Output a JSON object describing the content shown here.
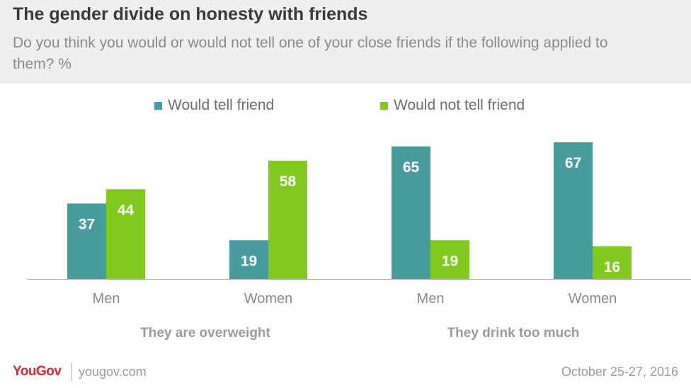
{
  "header": {
    "title": "The gender divide on honesty with friends",
    "subtitle": "Do you think you would or would not tell one of your close friends if the following applied to them? %"
  },
  "colors": {
    "would_tell": "#479c9d",
    "would_not_tell": "#82c91e"
  },
  "chart_data": {
    "type": "bar",
    "legend_position": "top-center",
    "grid": false,
    "ylim": [
      0,
      70
    ],
    "groups": [
      {
        "label": "They are overweight",
        "categories": [
          {
            "label": "Men",
            "values": [
              37,
              44
            ]
          },
          {
            "label": "Women",
            "values": [
              19,
              58
            ]
          }
        ]
      },
      {
        "label": "They drink too much",
        "categories": [
          {
            "label": "Men",
            "values": [
              65,
              19
            ]
          },
          {
            "label": "Women",
            "values": [
              67,
              16
            ]
          }
        ]
      }
    ],
    "series": [
      {
        "name": "Would tell friend",
        "values": [
          37,
          19,
          65,
          67
        ]
      },
      {
        "name": "Would not tell friend",
        "values": [
          44,
          58,
          19,
          16
        ]
      }
    ]
  },
  "footer": {
    "logo": "YouGov",
    "site": "yougov.com",
    "date": "October 25-27, 2016"
  }
}
